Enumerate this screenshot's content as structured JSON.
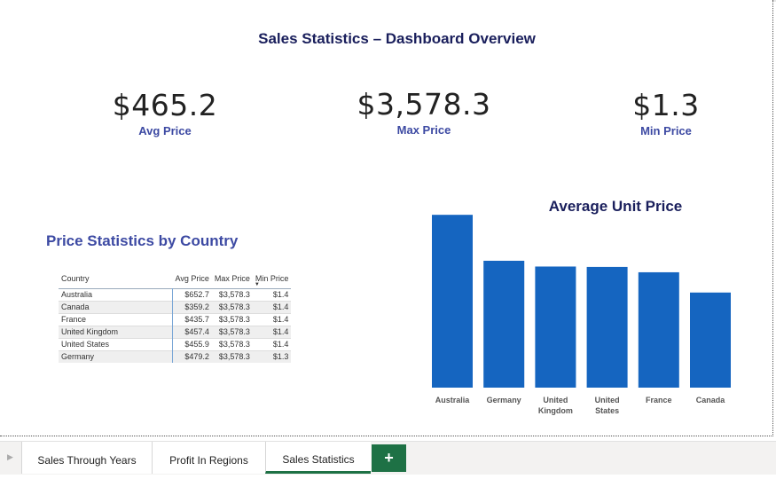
{
  "dashboard": {
    "title": "Sales Statistics – Dashboard Overview"
  },
  "kpis": [
    {
      "value": "$465.2",
      "label": "Avg Price"
    },
    {
      "value": "$3,578.3",
      "label": "Max Price"
    },
    {
      "value": "$1.3",
      "label": "Min Price"
    }
  ],
  "table": {
    "title": "Price Statistics by Country",
    "columns": [
      "Country",
      "Avg Price",
      "Max Price",
      "Min Price"
    ],
    "rows": [
      [
        "Australia",
        "$652.7",
        "$3,578.3",
        "$1.4"
      ],
      [
        "Canada",
        "$359.2",
        "$3,578.3",
        "$1.4"
      ],
      [
        "France",
        "$435.7",
        "$3,578.3",
        "$1.4"
      ],
      [
        "United Kingdom",
        "$457.4",
        "$3,578.3",
        "$1.4"
      ],
      [
        "United States",
        "$455.9",
        "$3,578.3",
        "$1.4"
      ],
      [
        "Germany",
        "$479.2",
        "$3,578.3",
        "$1.3"
      ]
    ]
  },
  "chart_data": {
    "type": "bar",
    "title": "Average Unit Price",
    "categories": [
      "Australia",
      "Germany",
      "United Kingdom",
      "United States",
      "France",
      "Canada"
    ],
    "category_labels": [
      [
        "Australia"
      ],
      [
        "Germany"
      ],
      [
        "United",
        "Kingdom"
      ],
      [
        "United",
        "States"
      ],
      [
        "France"
      ],
      [
        "Canada"
      ]
    ],
    "values": [
      652.7,
      479.2,
      457.4,
      455.9,
      435.7,
      359.2
    ],
    "ylim": [
      0,
      660
    ],
    "grid": false,
    "bar_color": "#1565c0"
  },
  "tabs": {
    "items": [
      "Sales Through Years",
      "Profit In Regions",
      "Sales Statistics"
    ],
    "active": "Sales Statistics",
    "add_label": "+",
    "nav_icon": "triangle-right-icon"
  },
  "colors": {
    "accent": "#1e7145",
    "title": "#1a1f5c",
    "label": "#3d4aa3"
  }
}
